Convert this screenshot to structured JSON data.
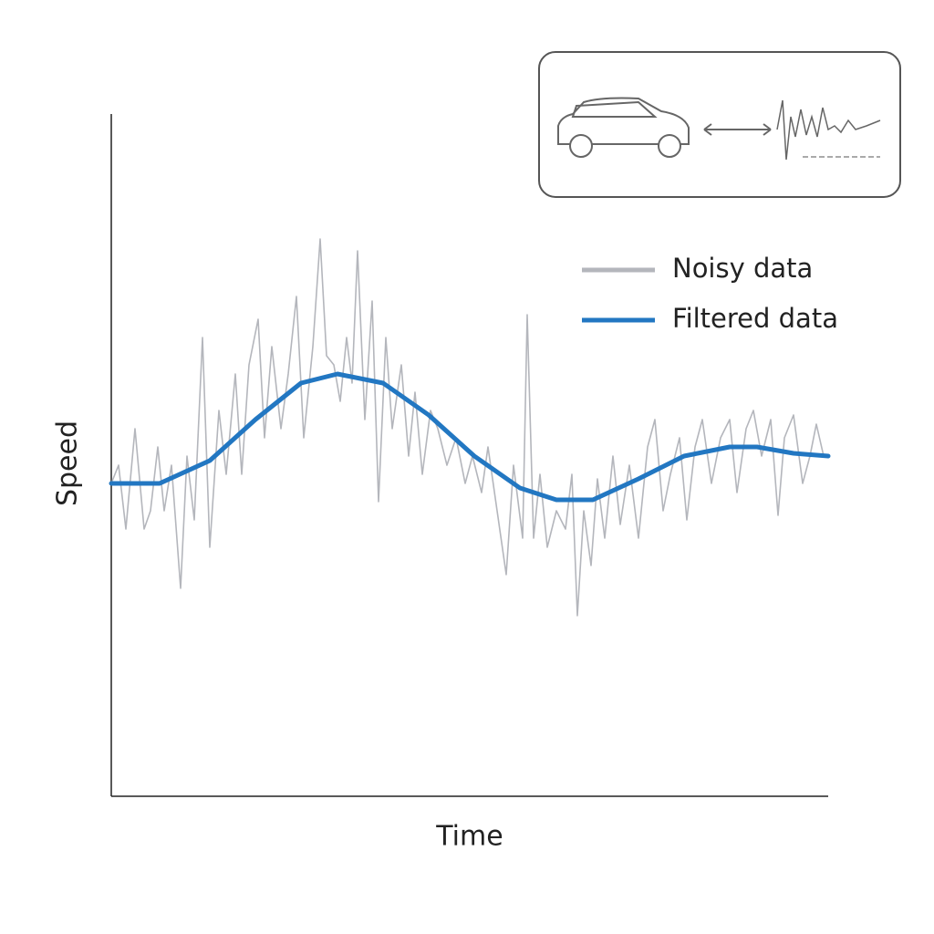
{
  "chart_data": {
    "type": "line",
    "x_label": "Time",
    "y_label": "Speed",
    "xlim": [
      0,
      786
    ],
    "ylim": [
      0,
      748
    ],
    "series": [
      {
        "name": "Noisy data",
        "color": "#b4b6bc",
        "x": [
          0,
          8,
          16,
          26,
          36,
          43,
          51,
          58,
          66,
          76,
          83,
          91,
          100,
          108,
          118,
          126,
          136,
          143,
          151,
          161,
          168,
          176,
          186,
          194,
          203,
          211,
          221,
          229,
          236,
          244,
          251,
          258,
          264,
          270,
          278,
          286,
          293,
          301,
          308,
          318,
          326,
          333,
          341,
          350,
          358,
          368,
          378,
          388,
          396,
          406,
          413,
          423,
          433,
          441,
          451,
          456,
          463,
          470,
          478,
          488,
          498,
          505,
          511,
          518,
          526,
          533,
          541,
          550,
          558,
          568,
          578,
          588,
          596,
          605,
          613,
          623,
          631,
          640,
          648,
          658,
          668,
          678,
          686,
          696,
          704,
          713,
          723,
          731,
          738,
          748,
          758,
          766,
          773,
          781
        ],
        "values": [
          343,
          363,
          293,
          403,
          293,
          313,
          383,
          313,
          363,
          228,
          373,
          303,
          503,
          273,
          423,
          353,
          463,
          353,
          473,
          523,
          393,
          493,
          403,
          463,
          548,
          393,
          493,
          611,
          483,
          473,
          433,
          503,
          453,
          598,
          413,
          543,
          323,
          503,
          403,
          473,
          373,
          443,
          353,
          423,
          403,
          363,
          393,
          343,
          373,
          333,
          383,
          313,
          243,
          363,
          283,
          528,
          283,
          353,
          273,
          313,
          293,
          353,
          198,
          313,
          253,
          348,
          283,
          373,
          298,
          363,
          283,
          383,
          413,
          313,
          353,
          393,
          303,
          383,
          413,
          343,
          393,
          413,
          333,
          403,
          423,
          373,
          413,
          308,
          393,
          418,
          343,
          373,
          408,
          373
        ]
      },
      {
        "name": "Filtered data",
        "color": "#2277c2",
        "x": [
          0,
          53,
          108,
          158,
          208,
          248,
          298,
          348,
          398,
          448,
          488,
          528,
          578,
          628,
          678,
          708,
          748,
          786
        ],
        "values": [
          343,
          343,
          368,
          413,
          453,
          463,
          453,
          418,
          373,
          338,
          325,
          325,
          348,
          373,
          383,
          383,
          376,
          373
        ]
      }
    ]
  }
}
